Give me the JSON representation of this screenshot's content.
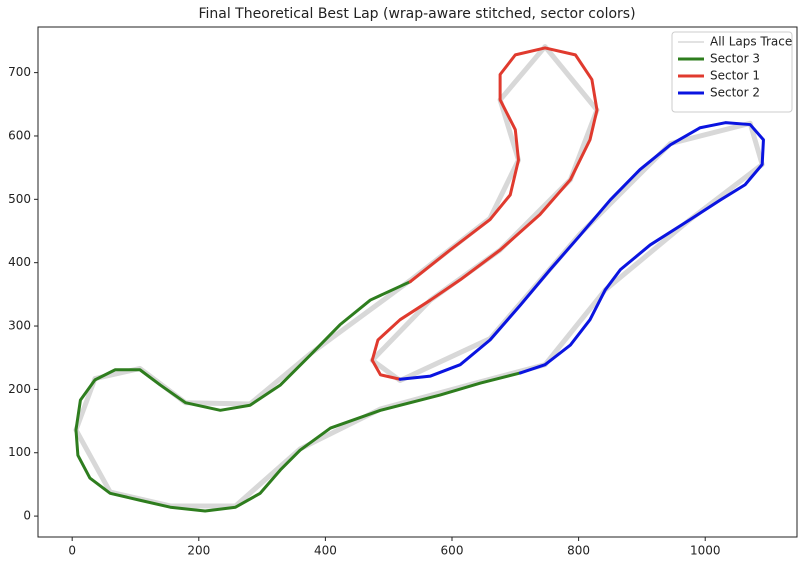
{
  "chart_data": {
    "type": "line",
    "title": "Final Theoretical Best Lap (wrap-aware stitched, sector colors)",
    "xlim": [
      -54,
      1145
    ],
    "ylim": [
      -33,
      772
    ],
    "xticks": [
      0,
      200,
      400,
      600,
      800,
      1000
    ],
    "yticks": [
      0,
      100,
      200,
      300,
      400,
      500,
      600,
      700
    ],
    "legend": "upper right",
    "series": [
      {
        "name": "All Laps Trace",
        "color": "#d8d8d8",
        "x": [
          534,
          660,
          705,
          676,
          747,
          829,
          787,
          676,
          566,
          474,
          518,
          660,
          803,
          945,
          1071,
          1090,
          976,
          842,
          747,
          645,
          487,
          360,
          258,
          155,
          60,
          6,
          36,
          107,
          179,
          281,
          376,
          534
        ],
        "y": [
          372,
          470,
          562,
          657,
          741,
          641,
          531,
          420,
          341,
          246,
          214,
          280,
          446,
          588,
          620,
          555,
          468,
          357,
          239,
          212,
          169,
          106,
          16,
          16,
          38,
          136,
          217,
          233,
          179,
          177,
          256,
          372
        ]
      },
      {
        "name": "Sector 3",
        "color": "#2e7d1e",
        "x": [
          708,
          645,
          581,
          487,
          408,
          360,
          329,
          297,
          258,
          210,
          155,
          107,
          60,
          28,
          9,
          6,
          13,
          36,
          68,
          107,
          139,
          179,
          234,
          281,
          329,
          376,
          423,
          471,
          534
        ],
        "y": [
          226,
          210,
          191,
          167,
          139,
          104,
          73,
          36,
          14,
          8,
          14,
          25,
          36,
          60,
          96,
          136,
          183,
          215,
          231,
          231,
          207,
          179,
          167,
          175,
          207,
          254,
          302,
          341,
          370
        ]
      },
      {
        "name": "Sector 1",
        "color": "#e03a2e",
        "x": [
          534,
          597,
          660,
          692,
          705,
          700,
          676,
          676,
          700,
          747,
          795,
          821,
          829,
          818,
          787,
          739,
          676,
          613,
          566,
          518,
          483,
          474,
          487,
          518
        ],
        "y": [
          370,
          420,
          468,
          507,
          562,
          610,
          657,
          697,
          728,
          739,
          728,
          689,
          641,
          594,
          531,
          476,
          420,
          373,
          341,
          310,
          278,
          246,
          223,
          216
        ]
      },
      {
        "name": "Sector 2",
        "color": "#0a14e0",
        "x": [
          518,
          566,
          613,
          660,
          708,
          755,
          803,
          850,
          897,
          945,
          992,
          1032,
          1071,
          1092,
          1090,
          1063,
          1024,
          976,
          913,
          866,
          842,
          818,
          787,
          747,
          708
        ],
        "y": [
          216,
          221,
          239,
          278,
          333,
          389,
          444,
          499,
          547,
          586,
          613,
          621,
          618,
          594,
          555,
          523,
          499,
          468,
          428,
          389,
          357,
          310,
          270,
          239,
          226
        ]
      }
    ]
  }
}
